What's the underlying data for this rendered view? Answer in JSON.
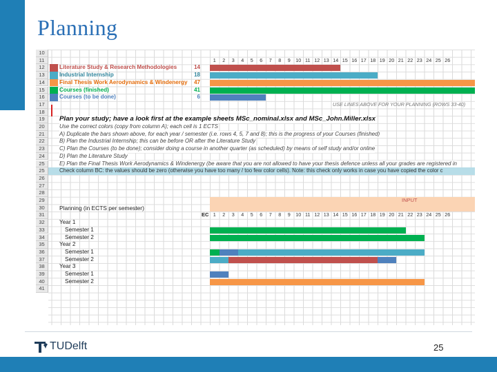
{
  "slide": {
    "title": "Planning",
    "page_number": "25",
    "logo_text": "TUDelft",
    "colors": {
      "accent": "#1f7fb6",
      "red": "#c0504d",
      "teal": "#4bacc6",
      "orange": "#f79646",
      "green": "#00b050",
      "blue": "#4f81bd",
      "input_header": "#fbd4b4"
    }
  },
  "sheet": {
    "week_numbers": [
      "1",
      "2",
      "3",
      "4",
      "5",
      "6",
      "7",
      "8",
      "9",
      "10",
      "11",
      "12",
      "13",
      "14",
      "15",
      "16",
      "17",
      "18",
      "19",
      "20",
      "21",
      "22",
      "23",
      "24",
      "25",
      "26"
    ],
    "rows_top": [
      {
        "rn": "10",
        "label": "",
        "value": "",
        "color": ""
      },
      {
        "rn": "11",
        "label": "",
        "value": "",
        "color": ""
      },
      {
        "rn": "12",
        "label": "Literature Study & Research Methodologies",
        "value": "14",
        "color": "red",
        "mark": "red"
      },
      {
        "rn": "13",
        "label": "Industrial Internship",
        "value": "18",
        "color": "teal",
        "mark": "teal"
      },
      {
        "rn": "14",
        "label": "Final Thesis Work Aerodynamics & Windenergy",
        "value": "47",
        "color": "orange",
        "mark": "orange"
      },
      {
        "rn": "15",
        "label": "Courses (finished)",
        "value": "41",
        "color": "green",
        "mark": "green"
      },
      {
        "rn": "16",
        "label": "Courses (to be done)",
        "value": "6",
        "color": "blue",
        "mark": "blue"
      }
    ],
    "note_17": "USE LINES ABOVE FOR YOUR PLANNING (ROWS 33-40)",
    "heading_19": "Plan your study; have a look first at the example sheets MSc_nominal.xlsx and MSc_John.Miller.xlsx",
    "instructions": [
      {
        "rn": "20",
        "text": "Use the correct colors (copy from column A); each cell is 1 ECTS"
      },
      {
        "rn": "21",
        "text": "A) Duplicate the bars shown above, for each year / semester (i.e. rows 4, 5, 7 and 8); this is the progress of your Courses (finished)"
      },
      {
        "rn": "22",
        "text": "B) Plan the Industrial Internship; this can be before OR after the Literature Study"
      },
      {
        "rn": "23",
        "text": "C) Plan the Courses (to be done); consider doing a course in another quarter (as scheduled) by means of self study and/or online"
      },
      {
        "rn": "24",
        "text": "D) Plan the Literature Study"
      },
      {
        "rn": "25",
        "text": "E) Plan the Final Thesis Work Aerodynamics & Windenergy (be aware that you are not allowed to have your thesis defence unless all your grades are registered in"
      }
    ],
    "check_note": "Check column BC: the values should be zero (otherwise you have too many / too few color cells). Note: this check only works in case you have copied the color c",
    "input_label": "INPUT",
    "planning_label": "Planning (in ECTS per semester)",
    "ec_label": "EC",
    "plan_rows": [
      {
        "rn": "32",
        "label": "Year 1"
      },
      {
        "rn": "33",
        "label": "Semester 1"
      },
      {
        "rn": "34",
        "label": "Semester 2"
      },
      {
        "rn": "35",
        "label": "Year 2"
      },
      {
        "rn": "36",
        "label": "Semester 1"
      },
      {
        "rn": "37",
        "label": "Semester 2"
      },
      {
        "rn": "38",
        "label": "Year 3"
      },
      {
        "rn": "39",
        "label": "Semester 1"
      },
      {
        "rn": "40",
        "label": "Semester 2"
      },
      {
        "rn": "41",
        "label": ""
      }
    ],
    "empty_rows": [
      "18",
      "26",
      "27",
      "28"
    ]
  }
}
